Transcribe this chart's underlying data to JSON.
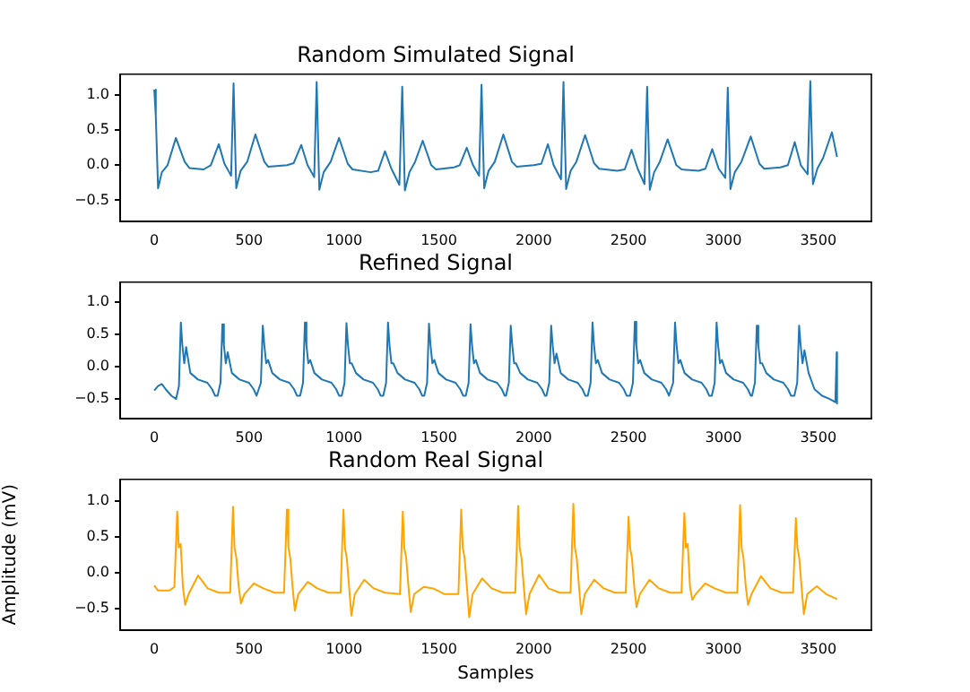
{
  "chart_data": [
    {
      "type": "line",
      "title": "Random Simulated Signal",
      "marker": "none",
      "line_style": "solid",
      "grid": false,
      "legend": false,
      "xlim": [
        -180,
        3780
      ],
      "ylim": [
        -0.8,
        1.3
      ],
      "xticks": [
        0,
        500,
        1000,
        1500,
        2000,
        2500,
        3000,
        3500
      ],
      "yticks": [
        {
          "value": -0.5,
          "label": "−0.5"
        },
        {
          "value": 0,
          "label": "0.0"
        },
        {
          "value": 0.5,
          "label": "0.5"
        },
        {
          "value": 1,
          "label": "1.0"
        }
      ],
      "x": [
        0,
        8,
        20,
        40,
        70,
        114,
        160,
        185,
        260,
        298,
        340,
        370,
        405,
        418,
        432,
        455,
        490,
        533,
        580,
        600,
        700,
        735,
        775,
        808,
        843,
        856,
        870,
        893,
        930,
        974,
        1020,
        1045,
        1140,
        1180,
        1216,
        1250,
        1292,
        1307,
        1321,
        1345,
        1375,
        1415,
        1460,
        1485,
        1580,
        1610,
        1647,
        1680,
        1712,
        1725,
        1739,
        1762,
        1795,
        1840,
        1885,
        1910,
        2000,
        2040,
        2075,
        2105,
        2144,
        2157,
        2171,
        2195,
        2225,
        2271,
        2318,
        2345,
        2440,
        2480,
        2516,
        2548,
        2584,
        2598,
        2612,
        2635,
        2665,
        2706,
        2752,
        2780,
        2870,
        2905,
        2941,
        2975,
        3010,
        3023,
        3037,
        3060,
        3095,
        3144,
        3190,
        3215,
        3300,
        3340,
        3376,
        3408,
        3444,
        3458,
        3472,
        3495,
        3525,
        3572,
        3599
      ],
      "series": [
        {
          "color": "#1f77b4",
          "values": [
            1.08,
            0.7,
            -0.33,
            -0.1,
            0.0,
            0.39,
            0.05,
            -0.04,
            -0.06,
            0.0,
            0.3,
            0.02,
            -0.15,
            1.17,
            -0.33,
            -0.08,
            0.05,
            0.44,
            0.05,
            -0.02,
            0.0,
            0.03,
            0.29,
            0.0,
            -0.17,
            1.19,
            -0.35,
            -0.1,
            0.05,
            0.39,
            0.02,
            -0.06,
            -0.1,
            -0.08,
            0.2,
            -0.05,
            -0.28,
            1.12,
            -0.36,
            -0.1,
            0.05,
            0.35,
            0.0,
            -0.06,
            -0.03,
            0.0,
            0.25,
            0.0,
            -0.15,
            1.15,
            -0.33,
            -0.08,
            0.05,
            0.44,
            0.05,
            -0.02,
            0.0,
            0.02,
            0.3,
            0.0,
            -0.2,
            1.19,
            -0.34,
            -0.08,
            0.05,
            0.43,
            0.03,
            -0.05,
            -0.08,
            -0.06,
            0.22,
            -0.05,
            -0.27,
            1.12,
            -0.35,
            -0.1,
            0.05,
            0.37,
            0.0,
            -0.06,
            -0.08,
            -0.05,
            0.23,
            -0.05,
            -0.18,
            1.11,
            -0.34,
            -0.1,
            0.05,
            0.41,
            0.02,
            -0.05,
            -0.03,
            0.0,
            0.33,
            0.0,
            -0.13,
            1.2,
            -0.27,
            -0.05,
            0.1,
            0.47,
            0.12
          ]
        }
      ]
    },
    {
      "type": "line",
      "title": "Refined Signal",
      "marker": "none",
      "line_style": "solid",
      "grid": false,
      "legend": false,
      "xlim": [
        -180,
        3780
      ],
      "ylim": [
        -0.8,
        1.3
      ],
      "xticks": [
        0,
        500,
        1000,
        1500,
        2000,
        2500,
        3000,
        3500
      ],
      "yticks": [
        {
          "value": -0.5,
          "label": "−0.5"
        },
        {
          "value": 0,
          "label": "0.0"
        },
        {
          "value": 0.5,
          "label": "0.5"
        },
        {
          "value": 1,
          "label": "1.0"
        }
      ],
      "x": [
        0,
        20,
        40,
        60,
        90,
        115,
        130,
        140,
        148,
        158,
        168,
        190,
        230,
        280,
        305,
        320,
        334,
        349,
        359,
        367,
        377,
        387,
        409,
        449,
        499,
        524,
        539,
        547,
        562,
        572,
        580,
        590,
        600,
        622,
        662,
        712,
        737,
        752,
        769,
        784,
        794,
        802,
        812,
        822,
        844,
        884,
        934,
        959,
        974,
        988,
        1003,
        1013,
        1021,
        1031,
        1041,
        1063,
        1103,
        1153,
        1178,
        1193,
        1207,
        1222,
        1232,
        1240,
        1250,
        1260,
        1282,
        1322,
        1372,
        1397,
        1412,
        1423,
        1438,
        1448,
        1456,
        1466,
        1476,
        1498,
        1538,
        1588,
        1613,
        1628,
        1642,
        1657,
        1667,
        1675,
        1685,
        1695,
        1717,
        1757,
        1807,
        1832,
        1847,
        1854,
        1869,
        1879,
        1887,
        1897,
        1907,
        1929,
        1969,
        2019,
        2044,
        2059,
        2067,
        2082,
        2092,
        2100,
        2110,
        2120,
        2142,
        2182,
        2232,
        2257,
        2272,
        2285,
        2300,
        2310,
        2318,
        2328,
        2338,
        2360,
        2400,
        2450,
        2475,
        2490,
        2508,
        2523,
        2533,
        2541,
        2551,
        2561,
        2583,
        2623,
        2673,
        2698,
        2713,
        2720,
        2735,
        2745,
        2753,
        2763,
        2773,
        2795,
        2835,
        2885,
        2910,
        2925,
        2939,
        2954,
        2964,
        2972,
        2982,
        2992,
        3014,
        3054,
        3104,
        3129,
        3144,
        3151,
        3166,
        3176,
        3184,
        3194,
        3204,
        3226,
        3266,
        3316,
        3341,
        3356,
        3374,
        3389,
        3399,
        3407,
        3417,
        3427,
        3449,
        3480,
        3520,
        3560,
        3590,
        3597,
        3599
      ],
      "series": [
        {
          "color": "#1f77b4",
          "values": [
            -0.37,
            -0.3,
            -0.27,
            -0.35,
            -0.45,
            -0.5,
            -0.3,
            0.68,
            0.33,
            0.05,
            0.3,
            -0.1,
            -0.2,
            -0.25,
            -0.35,
            -0.45,
            -0.45,
            -0.25,
            0.65,
            0.33,
            0.05,
            0.22,
            -0.1,
            -0.2,
            -0.25,
            -0.35,
            -0.45,
            -0.45,
            -0.25,
            0.63,
            0.33,
            0.05,
            0.1,
            -0.1,
            -0.2,
            -0.25,
            -0.35,
            -0.45,
            -0.45,
            -0.25,
            0.68,
            0.33,
            0.05,
            0.1,
            -0.1,
            -0.2,
            -0.25,
            -0.35,
            -0.45,
            -0.45,
            -0.25,
            0.67,
            0.33,
            0.05,
            0.05,
            -0.1,
            -0.2,
            -0.25,
            -0.35,
            -0.45,
            -0.45,
            -0.25,
            0.68,
            0.33,
            0.05,
            0.05,
            -0.1,
            -0.2,
            -0.25,
            -0.35,
            -0.45,
            -0.45,
            -0.25,
            0.66,
            0.33,
            0.05,
            0.1,
            -0.1,
            -0.2,
            -0.25,
            -0.35,
            -0.45,
            -0.45,
            -0.25,
            0.65,
            0.33,
            0.05,
            0.1,
            -0.1,
            -0.2,
            -0.25,
            -0.35,
            -0.45,
            -0.45,
            -0.25,
            0.63,
            0.33,
            0.05,
            0.05,
            -0.1,
            -0.2,
            -0.25,
            -0.35,
            -0.45,
            -0.45,
            -0.25,
            0.63,
            0.33,
            0.05,
            0.2,
            -0.1,
            -0.2,
            -0.25,
            -0.35,
            -0.45,
            -0.45,
            -0.25,
            0.68,
            0.33,
            0.05,
            0.1,
            -0.1,
            -0.2,
            -0.25,
            -0.35,
            -0.45,
            -0.45,
            -0.25,
            0.69,
            0.33,
            0.05,
            0.1,
            -0.1,
            -0.2,
            -0.25,
            -0.35,
            -0.45,
            -0.45,
            -0.25,
            0.68,
            0.33,
            0.05,
            0.1,
            -0.1,
            -0.2,
            -0.25,
            -0.35,
            -0.45,
            -0.45,
            -0.25,
            0.68,
            0.33,
            0.05,
            0.1,
            -0.1,
            -0.2,
            -0.25,
            -0.35,
            -0.45,
            -0.45,
            -0.25,
            0.63,
            0.33,
            0.05,
            0.05,
            -0.1,
            -0.2,
            -0.25,
            -0.35,
            -0.45,
            -0.45,
            -0.25,
            0.63,
            0.33,
            0.05,
            0.25,
            -0.1,
            -0.35,
            -0.45,
            -0.5,
            -0.55,
            0.22,
            -0.57
          ]
        }
      ]
    },
    {
      "type": "line",
      "title": "Random Real Signal",
      "xlabel": "Samples",
      "ylabel": "Amplitude (mV)",
      "marker": "none",
      "line_style": "solid",
      "grid": false,
      "legend": false,
      "xlim": [
        -180,
        3780
      ],
      "ylim": [
        -0.8,
        1.3
      ],
      "xticks": [
        0,
        500,
        1000,
        1500,
        2000,
        2500,
        3000,
        3500
      ],
      "yticks": [
        {
          "value": -0.5,
          "label": "−0.5"
        },
        {
          "value": 0,
          "label": "0.0"
        },
        {
          "value": 0.5,
          "label": "0.5"
        },
        {
          "value": 1,
          "label": "1.0"
        }
      ],
      "x": [
        0,
        20,
        80,
        106,
        121,
        129,
        139,
        151,
        163,
        181,
        231,
        281,
        341,
        400,
        415,
        423,
        433,
        445,
        457,
        475,
        525,
        575,
        635,
        684,
        699,
        707,
        717,
        729,
        741,
        759,
        809,
        859,
        919,
        982,
        997,
        1005,
        1015,
        1027,
        1039,
        1057,
        1107,
        1157,
        1217,
        1295,
        1310,
        1318,
        1328,
        1340,
        1352,
        1370,
        1420,
        1470,
        1530,
        1603,
        1618,
        1626,
        1636,
        1648,
        1660,
        1678,
        1728,
        1778,
        1838,
        1903,
        1918,
        1926,
        1936,
        1948,
        1960,
        1978,
        2028,
        2078,
        2138,
        2194,
        2209,
        2217,
        2227,
        2239,
        2251,
        2269,
        2319,
        2369,
        2429,
        2485,
        2500,
        2508,
        2518,
        2530,
        2542,
        2560,
        2610,
        2660,
        2720,
        2779,
        2794,
        2802,
        2812,
        2824,
        2836,
        2854,
        2904,
        2954,
        3014,
        3073,
        3088,
        3096,
        3106,
        3118,
        3130,
        3148,
        3198,
        3248,
        3308,
        3367,
        3382,
        3390,
        3400,
        3412,
        3424,
        3442,
        3492,
        3542,
        3599
      ],
      "series": [
        {
          "color": "#ffa500",
          "values": [
            -0.18,
            -0.25,
            -0.25,
            -0.2,
            0.85,
            0.35,
            0.4,
            -0.2,
            -0.45,
            -0.3,
            -0.04,
            -0.22,
            -0.28,
            -0.28,
            0.92,
            0.35,
            0.2,
            -0.2,
            -0.43,
            -0.3,
            -0.15,
            -0.22,
            -0.28,
            -0.28,
            0.88,
            0.35,
            0.2,
            -0.2,
            -0.53,
            -0.3,
            -0.13,
            -0.22,
            -0.28,
            -0.28,
            0.88,
            0.35,
            0.2,
            -0.2,
            -0.6,
            -0.3,
            -0.1,
            -0.22,
            -0.28,
            -0.3,
            0.85,
            0.35,
            0.2,
            -0.2,
            -0.55,
            -0.3,
            -0.2,
            -0.22,
            -0.3,
            -0.3,
            0.88,
            0.35,
            0.2,
            -0.2,
            -0.62,
            -0.3,
            -0.08,
            -0.22,
            -0.28,
            -0.28,
            0.93,
            0.35,
            0.2,
            -0.2,
            -0.58,
            -0.3,
            -0.03,
            -0.22,
            -0.28,
            -0.28,
            0.96,
            0.35,
            0.2,
            -0.2,
            -0.58,
            -0.3,
            -0.1,
            -0.22,
            -0.28,
            -0.28,
            0.78,
            0.35,
            0.2,
            -0.2,
            -0.48,
            -0.3,
            -0.1,
            -0.22,
            -0.28,
            -0.28,
            0.83,
            0.35,
            0.4,
            -0.2,
            -0.38,
            -0.3,
            -0.15,
            -0.22,
            -0.28,
            -0.28,
            0.94,
            0.35,
            0.2,
            -0.2,
            -0.45,
            -0.3,
            -0.05,
            -0.22,
            -0.28,
            -0.28,
            0.76,
            0.35,
            0.2,
            -0.2,
            -0.58,
            -0.3,
            -0.19,
            -0.3,
            -0.37
          ]
        }
      ]
    }
  ]
}
